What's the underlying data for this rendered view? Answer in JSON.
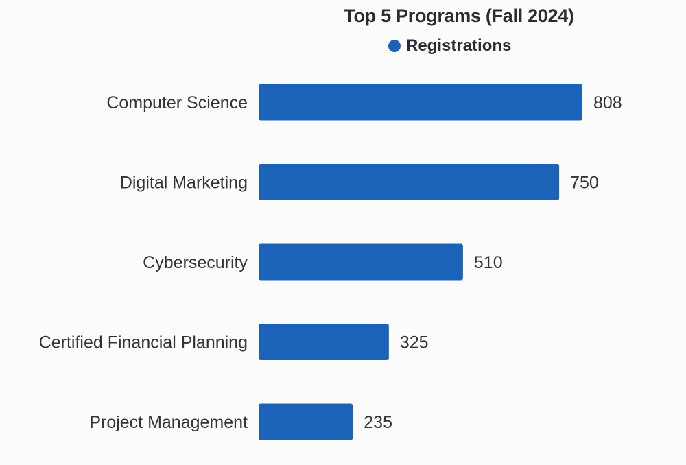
{
  "chart_data": {
    "type": "bar",
    "orientation": "horizontal",
    "title": "Top 5 Programs (Fall 2024)",
    "categories": [
      "Computer Science",
      "Digital Marketing",
      "Cybersecurity",
      "Certified Financial Planning",
      "Project Management"
    ],
    "series": [
      {
        "name": "Registrations",
        "values": [
          808,
          750,
          510,
          325,
          235
        ],
        "color": "#1a63b8"
      }
    ],
    "xlim": [
      0,
      808
    ],
    "grid": false,
    "legend": "top-center",
    "xlabel": "",
    "ylabel": ""
  }
}
